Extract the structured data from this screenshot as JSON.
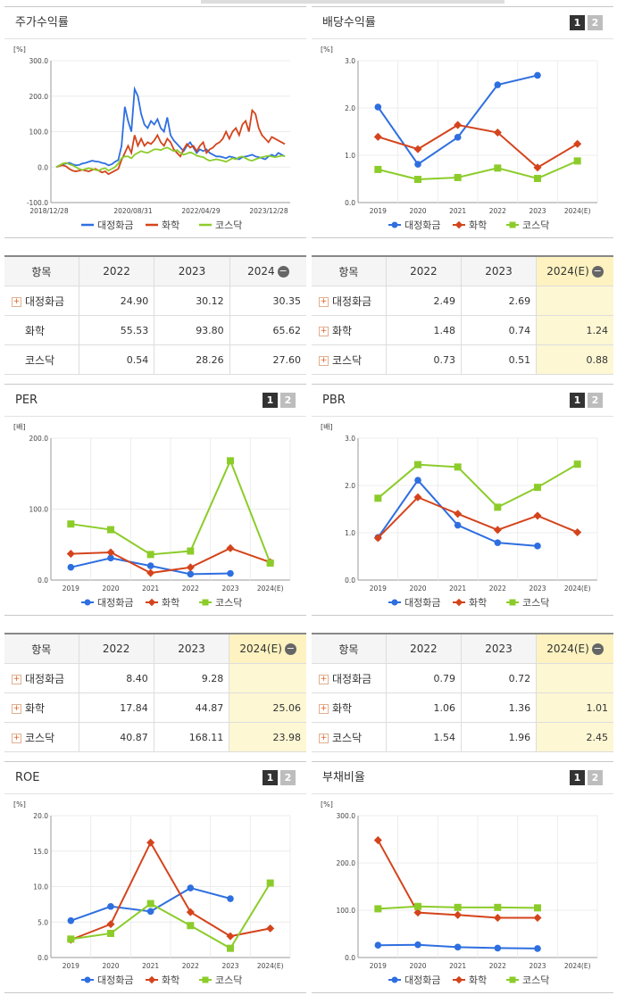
{
  "colors": {
    "a": "#2e6fe0",
    "b": "#d4441c",
    "c": "#8ccc2a"
  },
  "legend": [
    "대정화금",
    "화학",
    "코스닥"
  ],
  "panels": {
    "stock": {
      "title": "주가수익률"
    },
    "div": {
      "title": "배당수익률",
      "btn1": "1",
      "btn2": "2"
    },
    "per": {
      "title": "PER",
      "btn1": "1",
      "btn2": "2"
    },
    "pbr": {
      "title": "PBR",
      "btn1": "1",
      "btn2": "2"
    },
    "roe": {
      "title": "ROE",
      "btn1": "1",
      "btn2": "2"
    },
    "debt": {
      "title": "부채비율",
      "btn1": "1",
      "btn2": "2"
    }
  },
  "tables": {
    "stock": {
      "headers": [
        "항목",
        "2022",
        "2023",
        "2024"
      ],
      "rows": [
        {
          "name": "대정화금",
          "plus": true,
          "v": [
            "24.90",
            "30.12",
            "30.35"
          ]
        },
        {
          "name": "화학",
          "plus": false,
          "v": [
            "55.53",
            "93.80",
            "65.62"
          ]
        },
        {
          "name": "코스닥",
          "plus": false,
          "v": [
            "0.54",
            "28.26",
            "27.60"
          ]
        }
      ]
    },
    "div": {
      "headers": [
        "항목",
        "2022",
        "2023",
        "2024(E)"
      ],
      "rows": [
        {
          "name": "대정화금",
          "plus": true,
          "v": [
            "2.49",
            "2.69",
            ""
          ]
        },
        {
          "name": "화학",
          "plus": true,
          "v": [
            "1.48",
            "0.74",
            "1.24"
          ]
        },
        {
          "name": "코스닥",
          "plus": true,
          "v": [
            "0.73",
            "0.51",
            "0.88"
          ]
        }
      ]
    },
    "per": {
      "headers": [
        "항목",
        "2022",
        "2023",
        "2024(E)"
      ],
      "rows": [
        {
          "name": "대정화금",
          "plus": true,
          "v": [
            "8.40",
            "9.28",
            ""
          ]
        },
        {
          "name": "화학",
          "plus": true,
          "v": [
            "17.84",
            "44.87",
            "25.06"
          ]
        },
        {
          "name": "코스닥",
          "plus": true,
          "v": [
            "40.87",
            "168.11",
            "23.98"
          ]
        }
      ]
    },
    "pbr": {
      "headers": [
        "항목",
        "2022",
        "2023",
        "2024(E)"
      ],
      "rows": [
        {
          "name": "대정화금",
          "plus": true,
          "v": [
            "0.79",
            "0.72",
            ""
          ]
        },
        {
          "name": "화학",
          "plus": true,
          "v": [
            "1.06",
            "1.36",
            "1.01"
          ]
        },
        {
          "name": "코스닥",
          "plus": true,
          "v": [
            "1.54",
            "1.96",
            "2.45"
          ]
        }
      ]
    }
  },
  "chart_data": [
    {
      "id": "stock",
      "type": "line",
      "ylabel": "[%]",
      "ylim": [
        -100,
        300
      ],
      "yticks": [
        "300.0",
        "200.0",
        "100.0",
        "0.0",
        "-100.0"
      ],
      "xticks": [
        "2018/12/28",
        "2020/08/31",
        "2022/04/29",
        "2023/12/28"
      ],
      "x": [
        0,
        1,
        2,
        3,
        4,
        5,
        6,
        7,
        8,
        9,
        10,
        11,
        12,
        13,
        14,
        15,
        16,
        17,
        18,
        19,
        20,
        21,
        22,
        23,
        24,
        25,
        26,
        27,
        28,
        29,
        30,
        31,
        32,
        33,
        34,
        35,
        36,
        37,
        38,
        39,
        40,
        41,
        42,
        43,
        44,
        45,
        46,
        47,
        48,
        49,
        50,
        51,
        52,
        53,
        54,
        55,
        56,
        57,
        58,
        59,
        60,
        61,
        62,
        63,
        64,
        65,
        66,
        67,
        68,
        69,
        70
      ],
      "series": [
        {
          "name": "대정화금",
          "values": [
            0,
            5,
            8,
            10,
            12,
            8,
            5,
            6,
            10,
            12,
            15,
            18,
            16,
            15,
            12,
            10,
            5,
            8,
            15,
            20,
            60,
            170,
            130,
            100,
            220,
            200,
            150,
            120,
            110,
            130,
            120,
            135,
            110,
            100,
            140,
            90,
            75,
            65,
            55,
            45,
            60,
            70,
            55,
            40,
            50,
            45,
            50,
            40,
            35,
            30,
            30,
            28,
            25,
            30,
            28,
            25,
            22,
            28,
            30,
            32,
            35,
            30,
            28,
            25,
            22,
            30,
            35,
            30,
            40,
            35,
            30
          ]
        },
        {
          "name": "화학",
          "values": [
            0,
            3,
            5,
            2,
            -5,
            -10,
            -12,
            -10,
            -8,
            -10,
            -12,
            -8,
            -5,
            -10,
            -15,
            -12,
            -20,
            -15,
            -10,
            -5,
            20,
            40,
            60,
            40,
            90,
            60,
            80,
            60,
            70,
            65,
            75,
            90,
            70,
            60,
            80,
            70,
            50,
            40,
            30,
            50,
            65,
            55,
            60,
            45,
            60,
            70,
            40,
            50,
            55,
            65,
            70,
            80,
            100,
            80,
            100,
            110,
            90,
            120,
            130,
            100,
            160,
            150,
            110,
            90,
            80,
            70,
            85,
            80,
            75,
            70,
            65
          ]
        },
        {
          "name": "코스닥",
          "values": [
            0,
            5,
            10,
            12,
            8,
            5,
            0,
            -5,
            -8,
            -5,
            -3,
            -5,
            -8,
            -10,
            -5,
            -3,
            -10,
            -5,
            0,
            10,
            25,
            30,
            30,
            25,
            35,
            40,
            45,
            42,
            40,
            45,
            50,
            50,
            48,
            52,
            55,
            50,
            45,
            48,
            40,
            35,
            38,
            42,
            38,
            32,
            30,
            28,
            22,
            18,
            20,
            22,
            20,
            18,
            15,
            20,
            25,
            22,
            28,
            30,
            25,
            20,
            18,
            22,
            25,
            28,
            30,
            32,
            30,
            28,
            30,
            32,
            31
          ]
        }
      ]
    },
    {
      "id": "div",
      "type": "line",
      "ylabel": "[%]",
      "ylim": [
        0,
        3
      ],
      "yticks": [
        "3.0",
        "2.0",
        "1.0",
        "0.0"
      ],
      "categories": [
        "2019",
        "2020",
        "2021",
        "2022",
        "2023",
        "2024(E)"
      ],
      "series": [
        {
          "name": "대정화금",
          "values": [
            2.02,
            0.81,
            1.38,
            2.49,
            2.69,
            null
          ]
        },
        {
          "name": "화학",
          "values": [
            1.39,
            1.13,
            1.64,
            1.48,
            0.74,
            1.24
          ]
        },
        {
          "name": "코스닥",
          "values": [
            0.7,
            0.49,
            0.53,
            0.73,
            0.51,
            0.88
          ]
        }
      ]
    },
    {
      "id": "per",
      "type": "line",
      "ylabel": "[배]",
      "ylim": [
        0,
        200
      ],
      "yticks": [
        "200.0",
        "100.0",
        "0.0"
      ],
      "categories": [
        "2019",
        "2020",
        "2021",
        "2022",
        "2023",
        "2024(E)"
      ],
      "series": [
        {
          "name": "대정화금",
          "values": [
            18,
            31,
            20,
            8.4,
            9.28,
            null
          ]
        },
        {
          "name": "화학",
          "values": [
            37,
            39,
            10,
            17.84,
            44.87,
            25.06
          ]
        },
        {
          "name": "코스닥",
          "values": [
            79,
            71,
            36,
            40.87,
            168.11,
            23.98
          ]
        }
      ]
    },
    {
      "id": "pbr",
      "type": "line",
      "ylabel": "[배]",
      "ylim": [
        0,
        3
      ],
      "yticks": [
        "3.0",
        "2.0",
        "1.0",
        "0.0"
      ],
      "categories": [
        "2019",
        "2020",
        "2021",
        "2022",
        "2023",
        "2024(E)"
      ],
      "series": [
        {
          "name": "대정화금",
          "values": [
            0.9,
            2.11,
            1.16,
            0.79,
            0.72,
            null
          ]
        },
        {
          "name": "화학",
          "values": [
            0.89,
            1.75,
            1.4,
            1.06,
            1.36,
            1.01
          ]
        },
        {
          "name": "코스닥",
          "values": [
            1.73,
            2.44,
            2.39,
            1.54,
            1.96,
            2.45
          ]
        }
      ]
    },
    {
      "id": "roe",
      "type": "line",
      "ylabel": "[%]",
      "ylim": [
        0,
        20
      ],
      "yticks": [
        "20.0",
        "15.0",
        "10.0",
        "5.0",
        "0.0"
      ],
      "categories": [
        "2019",
        "2020",
        "2021",
        "2022",
        "2023",
        "2024(E)"
      ],
      "series": [
        {
          "name": "대정화금",
          "values": [
            5.2,
            7.2,
            6.5,
            9.8,
            8.3,
            null
          ]
        },
        {
          "name": "화학",
          "values": [
            2.5,
            4.7,
            16.2,
            6.4,
            3.0,
            4.1
          ]
        },
        {
          "name": "코스닥",
          "values": [
            2.6,
            3.4,
            7.6,
            4.5,
            1.3,
            10.5
          ]
        }
      ]
    },
    {
      "id": "debt",
      "type": "line",
      "ylabel": "[%]",
      "ylim": [
        0,
        300
      ],
      "yticks": [
        "300.0",
        "200.0",
        "100.0",
        "0.0"
      ],
      "categories": [
        "2019",
        "2020",
        "2021",
        "2022",
        "2023",
        "2024(E)"
      ],
      "series": [
        {
          "name": "대정화금",
          "values": [
            26,
            27,
            22,
            20,
            19,
            null
          ]
        },
        {
          "name": "화학",
          "values": [
            248,
            95,
            90,
            84,
            84,
            null
          ]
        },
        {
          "name": "코스닥",
          "values": [
            103,
            108,
            106,
            106,
            105,
            null
          ]
        }
      ]
    }
  ]
}
